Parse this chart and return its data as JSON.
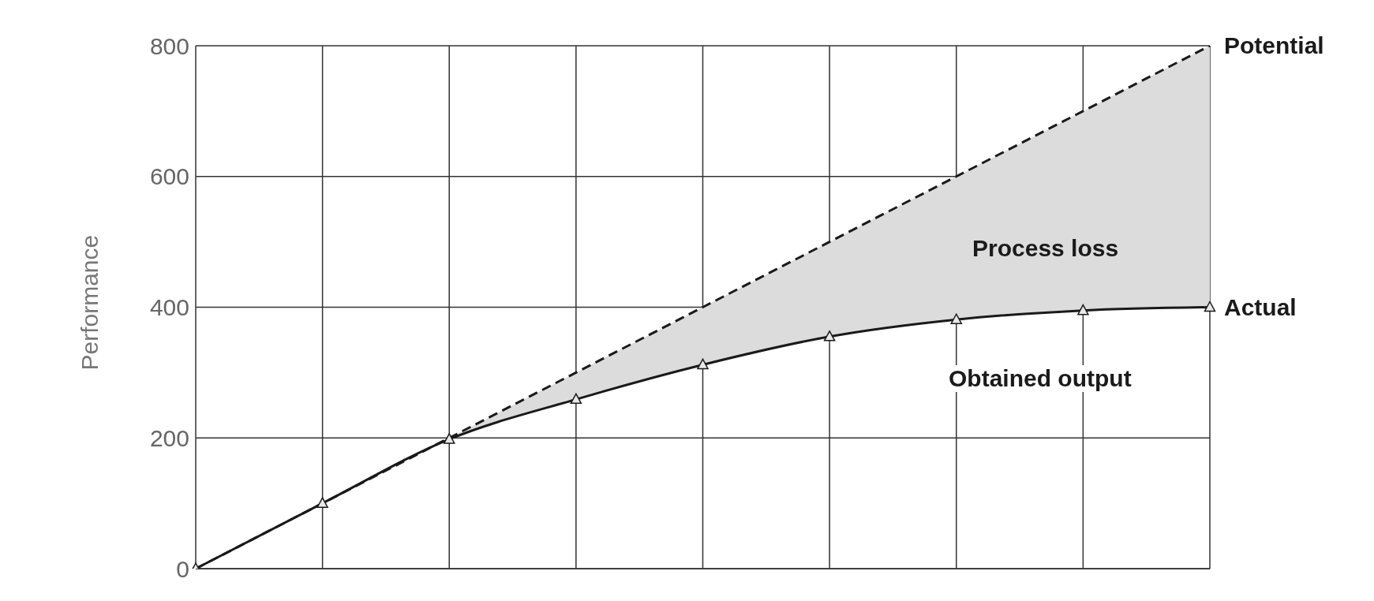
{
  "chart_data": {
    "type": "line",
    "ylabel": "Performance",
    "categories": [
      null,
      null,
      null,
      null,
      null,
      null,
      null,
      null,
      null
    ],
    "ylim": [
      0,
      800
    ],
    "yticks": [
      0,
      200,
      400,
      600,
      800
    ],
    "grid": true,
    "tick_labels": "y",
    "series": [
      {
        "name": "Potential",
        "color": "#1a1a1a",
        "values": [
          0,
          100,
          200,
          300,
          400,
          500,
          600,
          700,
          800
        ],
        "line_style": "dashed",
        "marker": "none"
      },
      {
        "name": "Actual",
        "color": "#1a1a1a",
        "values": [
          0,
          100,
          198,
          259,
          312,
          355,
          381,
          395,
          400
        ],
        "line_style": "solid",
        "marker": "triangle",
        "lower": [
          0,
          100,
          198,
          259,
          312,
          355,
          381,
          395,
          400
        ],
        "upper": [
          0,
          100,
          200,
          300,
          400,
          500,
          600,
          700,
          800
        ]
      }
    ],
    "annotations": [
      "Process loss",
      "Obtained output"
    ]
  }
}
